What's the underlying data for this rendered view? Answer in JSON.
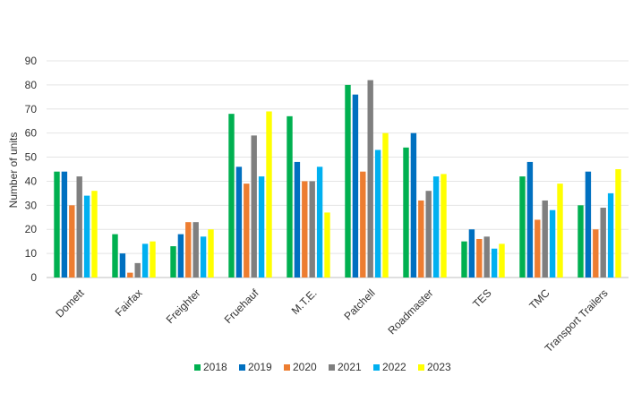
{
  "chart_data": {
    "type": "bar",
    "title": "",
    "xlabel": "",
    "ylabel": "Number of units",
    "ylim": [
      0,
      90
    ],
    "yticks": [
      0,
      10,
      20,
      30,
      40,
      50,
      60,
      70,
      80,
      90
    ],
    "grid": true,
    "legend_position": "bottom",
    "categories": [
      "Domett",
      "Fairfax",
      "Freighter",
      "Fruehauf",
      "M.T.E.",
      "Patchell",
      "Roadmaster",
      "TES",
      "TMC",
      "Transport Trailers"
    ],
    "series": [
      {
        "name": "2018",
        "color": "#00b050",
        "values": [
          44,
          18,
          13,
          68,
          67,
          80,
          54,
          15,
          42,
          30
        ]
      },
      {
        "name": "2019",
        "color": "#0070c0",
        "values": [
          44,
          10,
          18,
          46,
          48,
          76,
          60,
          20,
          48,
          44
        ]
      },
      {
        "name": "2020",
        "color": "#ed7d31",
        "values": [
          30,
          2,
          23,
          39,
          40,
          44,
          32,
          16,
          24,
          20
        ]
      },
      {
        "name": "2021",
        "color": "#7f7f7f",
        "values": [
          42,
          6,
          23,
          59,
          40,
          82,
          36,
          17,
          32,
          29
        ]
      },
      {
        "name": "2022",
        "color": "#00b0f0",
        "values": [
          34,
          14,
          17,
          42,
          46,
          53,
          42,
          12,
          28,
          35
        ]
      },
      {
        "name": "2023",
        "color": "#ffff00",
        "values": [
          36,
          15,
          20,
          69,
          27,
          60,
          43,
          14,
          39,
          45
        ]
      }
    ]
  }
}
